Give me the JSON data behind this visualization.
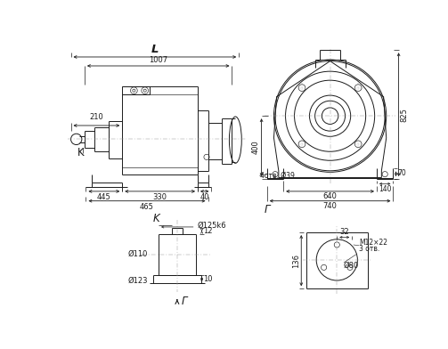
{
  "bg_color": "#ffffff",
  "lc": "#1a1a1a",
  "lw": 0.7,
  "tlw": 0.45,
  "clw": 0.35,
  "fs": 6.0,
  "fs_label": 8.5,
  "ann": {
    "L": "L",
    "d1007": "1007",
    "d210": "210",
    "d445": "445",
    "d330": "330",
    "d40": "40",
    "d465": "465",
    "K": "K",
    "G": "Г",
    "d825": "825",
    "d400": "400",
    "d70": "70",
    "d140": "140",
    "d640": "640",
    "d740": "740",
    "d4otv": "4отв. Ø39",
    "Ksec": "K",
    "phi125": "Ø125k6",
    "d12": "12",
    "phi110": "Ø110",
    "phi123": "Ø123",
    "d10": "10",
    "d32": "32",
    "M12x22": "M12×22",
    "d3otv": "3 отв.",
    "phi80": "Ø80",
    "d136": "136"
  }
}
